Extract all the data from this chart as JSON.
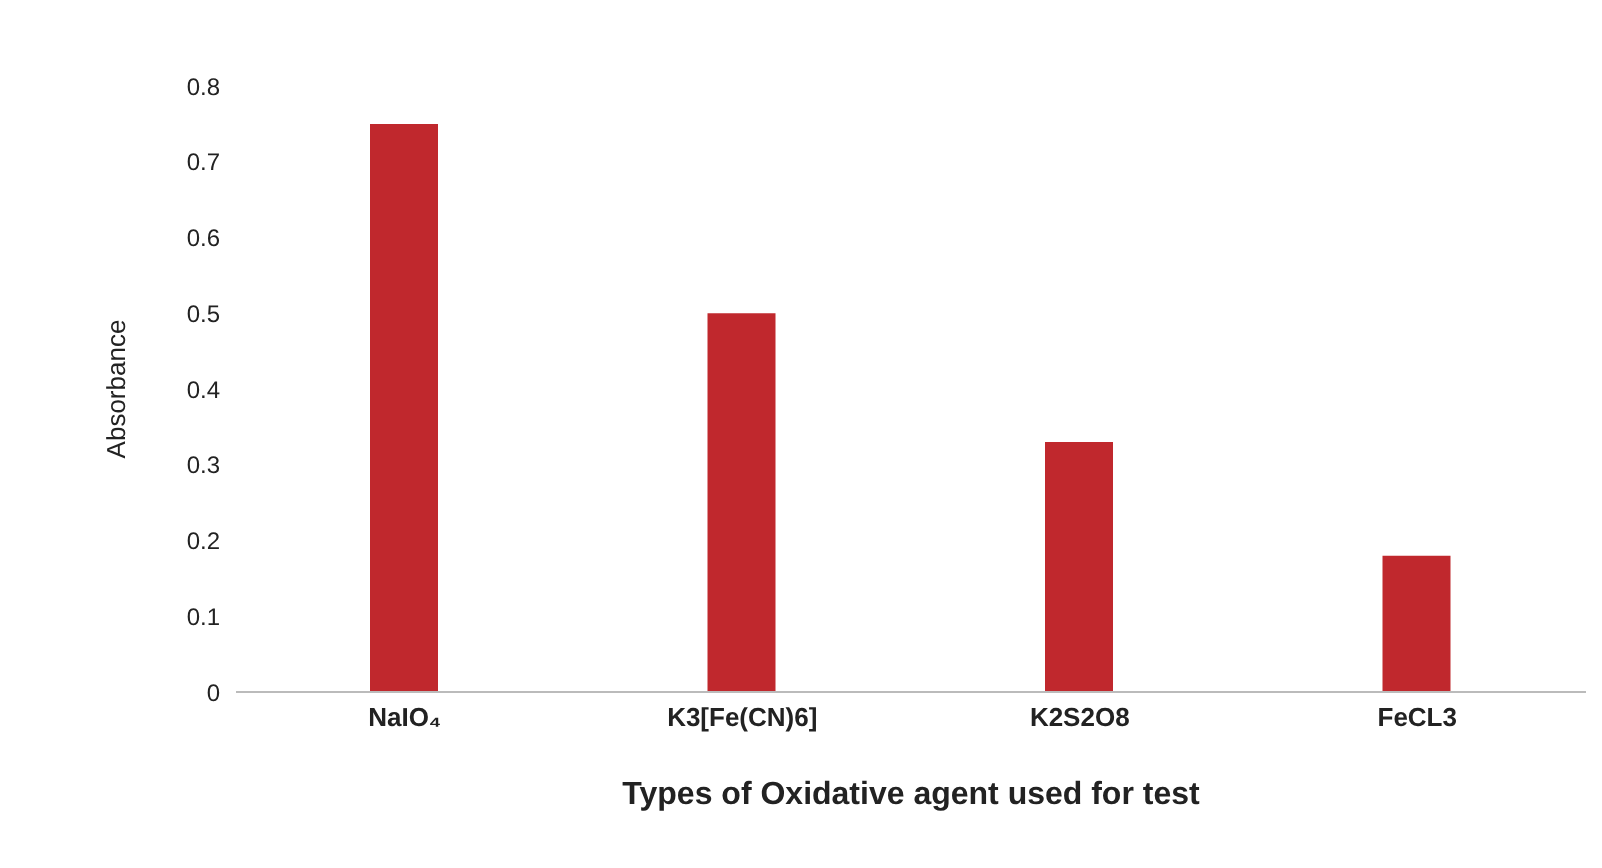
{
  "chart_data": {
    "type": "bar",
    "xlabel": "Types  of Oxidative agent used for test",
    "ylabel": "Absorbance",
    "categories": [
      "NaIO₄",
      "K3[Fe(CN)6]",
      "K2S2O8",
      "FeCL3"
    ],
    "values": [
      0.75,
      0.5,
      0.33,
      0.18
    ],
    "color": "#c0282d",
    "ylim": [
      0,
      0.8
    ],
    "yticks": [
      0,
      0.1,
      0.2,
      0.3,
      0.4,
      0.5,
      0.6,
      0.7,
      0.8
    ],
    "legend": false
  }
}
